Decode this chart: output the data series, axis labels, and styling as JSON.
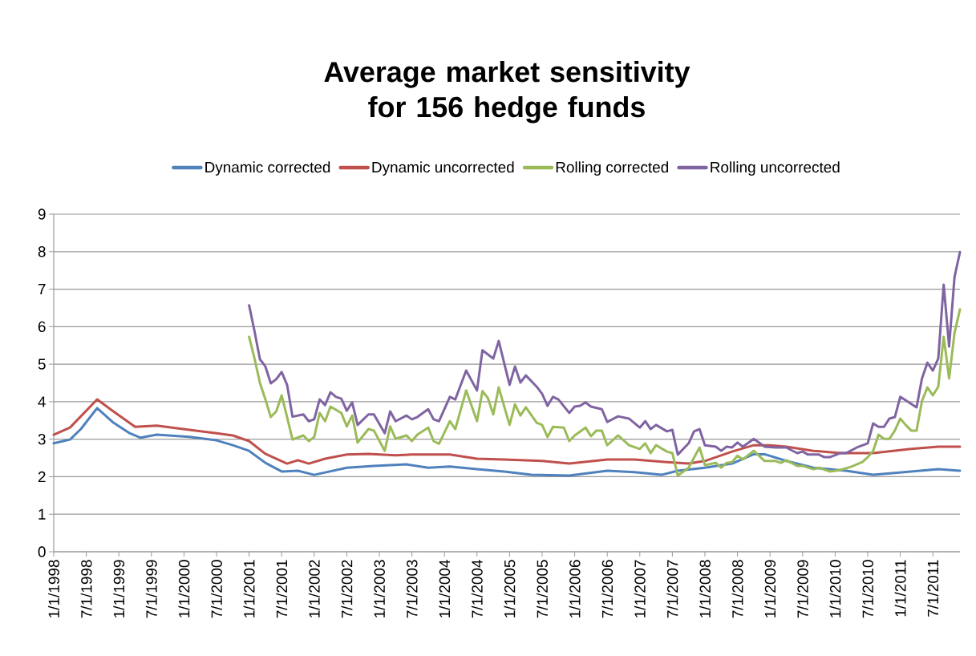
{
  "chart_data": {
    "type": "line",
    "title": "Average market sensitivity for 156 hedge funds",
    "series": [
      {
        "name": "Dynamic corrected",
        "color": "#4f81bd",
        "x": [
          "1998-01",
          "1998-04",
          "1998-06",
          "1998-09",
          "1998-12",
          "1999-03",
          "1999-05",
          "1999-08",
          "2000-02",
          "2000-07",
          "2000-10",
          "2001-01",
          "2001-04",
          "2001-07",
          "2001-10",
          "2002-01",
          "2002-07",
          "2002-12",
          "2003-06",
          "2003-10",
          "2004-02",
          "2004-07",
          "2004-12",
          "2005-05",
          "2005-12",
          "2006-07",
          "2006-12",
          "2007-05",
          "2007-08",
          "2008-01",
          "2008-06",
          "2008-10",
          "2008-12",
          "2009-04",
          "2009-09",
          "2010-03",
          "2010-08",
          "2010-12",
          "2011-08",
          "2011-12"
        ],
        "values": [
          2.89,
          2.99,
          3.27,
          3.83,
          3.44,
          3.16,
          3.04,
          3.12,
          3.06,
          2.97,
          2.84,
          2.69,
          2.37,
          2.14,
          2.16,
          2.05,
          2.24,
          2.29,
          2.33,
          2.24,
          2.27,
          2.2,
          2.14,
          2.05,
          2.03,
          2.16,
          2.12,
          2.05,
          2.16,
          2.24,
          2.35,
          2.6,
          2.6,
          2.42,
          2.24,
          2.16,
          2.05,
          2.1,
          2.2,
          2.16
        ]
      },
      {
        "name": "Dynamic uncorrected",
        "color": "#c0504d",
        "x": [
          "1998-01",
          "1998-04",
          "1998-09",
          "1998-12",
          "1999-04",
          "1999-08",
          "2000-02",
          "2000-07",
          "2000-10",
          "2001-01",
          "2001-04",
          "2001-08",
          "2001-10",
          "2001-12",
          "2002-03",
          "2002-07",
          "2002-11",
          "2003-04",
          "2003-07",
          "2004-02",
          "2004-07",
          "2004-12",
          "2005-07",
          "2005-12",
          "2006-07",
          "2006-12",
          "2007-06",
          "2007-10",
          "2008-01",
          "2008-06",
          "2008-10",
          "2009-01",
          "2009-04",
          "2009-09",
          "2010-02",
          "2010-08",
          "2011-03",
          "2011-08",
          "2011-12"
        ],
        "values": [
          3.12,
          3.31,
          4.06,
          3.74,
          3.33,
          3.36,
          3.25,
          3.16,
          3.1,
          2.95,
          2.61,
          2.35,
          2.44,
          2.35,
          2.48,
          2.59,
          2.61,
          2.57,
          2.59,
          2.59,
          2.48,
          2.46,
          2.42,
          2.35,
          2.46,
          2.46,
          2.39,
          2.35,
          2.42,
          2.67,
          2.84,
          2.84,
          2.8,
          2.69,
          2.63,
          2.63,
          2.74,
          2.8,
          2.8
        ]
      },
      {
        "name": "Rolling corrected",
        "color": "#9bbb59",
        "x": [
          "2001-01",
          "2001-02",
          "2001-03",
          "2001-04",
          "2001-05",
          "2001-06",
          "2001-07",
          "2001-08",
          "2001-09",
          "2001-11",
          "2001-12",
          "2002-01",
          "2002-02",
          "2002-03",
          "2002-04",
          "2002-06",
          "2002-07",
          "2002-08",
          "2002-09",
          "2002-11",
          "2002-12",
          "2003-02",
          "2003-03",
          "2003-04",
          "2003-06",
          "2003-07",
          "2003-08",
          "2003-10",
          "2003-11",
          "2003-12",
          "2004-02",
          "2004-03",
          "2004-05",
          "2004-07",
          "2004-08",
          "2004-09",
          "2004-10",
          "2004-11",
          "2005-01",
          "2005-02",
          "2005-03",
          "2005-04",
          "2005-06",
          "2005-07",
          "2005-08",
          "2005-09",
          "2005-11",
          "2005-12",
          "2006-01",
          "2006-03",
          "2006-04",
          "2006-05",
          "2006-06",
          "2006-07",
          "2006-09",
          "2006-11",
          "2007-01",
          "2007-02",
          "2007-03",
          "2007-04",
          "2007-06",
          "2007-07",
          "2007-08",
          "2007-10",
          "2007-12",
          "2008-01",
          "2008-03",
          "2008-04",
          "2008-05",
          "2008-06",
          "2008-07",
          "2008-08",
          "2008-10",
          "2008-12",
          "2009-02",
          "2009-03",
          "2009-04",
          "2009-06",
          "2009-07",
          "2009-09",
          "2009-10",
          "2009-12",
          "2010-02",
          "2010-04",
          "2010-06",
          "2010-07",
          "2010-08",
          "2010-09",
          "2010-10",
          "2010-11",
          "2010-12",
          "2011-01",
          "2011-02",
          "2011-03",
          "2011-04",
          "2011-05",
          "2011-06",
          "2011-07",
          "2011-08",
          "2011-09",
          "2011-10",
          "2011-11",
          "2011-12"
        ],
        "values": [
          5.73,
          5.15,
          4.5,
          4.06,
          3.59,
          3.74,
          4.17,
          3.59,
          2.99,
          3.1,
          2.95,
          3.06,
          3.7,
          3.48,
          3.87,
          3.7,
          3.34,
          3.63,
          2.91,
          3.27,
          3.23,
          2.69,
          3.34,
          3.01,
          3.1,
          2.95,
          3.12,
          3.31,
          2.95,
          2.88,
          3.48,
          3.27,
          4.3,
          3.48,
          4.28,
          4.1,
          3.66,
          4.38,
          3.38,
          3.93,
          3.63,
          3.85,
          3.44,
          3.38,
          3.06,
          3.33,
          3.31,
          2.95,
          3.1,
          3.31,
          3.08,
          3.23,
          3.23,
          2.84,
          3.1,
          2.84,
          2.74,
          2.89,
          2.63,
          2.84,
          2.67,
          2.63,
          2.03,
          2.24,
          2.78,
          2.31,
          2.37,
          2.24,
          2.37,
          2.39,
          2.56,
          2.46,
          2.69,
          2.42,
          2.42,
          2.37,
          2.44,
          2.29,
          2.29,
          2.2,
          2.24,
          2.14,
          2.18,
          2.27,
          2.39,
          2.52,
          2.69,
          3.12,
          3.01,
          3.01,
          3.23,
          3.55,
          3.38,
          3.23,
          3.23,
          4.02,
          4.38,
          4.17,
          4.4,
          5.73,
          4.62,
          5.84,
          6.46
        ]
      },
      {
        "name": "Rolling uncorrected",
        "color": "#8064a2",
        "x": [
          "2001-01",
          "2001-02",
          "2001-03",
          "2001-04",
          "2001-05",
          "2001-06",
          "2001-07",
          "2001-08",
          "2001-09",
          "2001-11",
          "2001-12",
          "2002-01",
          "2002-02",
          "2002-03",
          "2002-04",
          "2002-05",
          "2002-06",
          "2002-07",
          "2002-08",
          "2002-09",
          "2002-11",
          "2002-12",
          "2003-02",
          "2003-03",
          "2003-04",
          "2003-06",
          "2003-07",
          "2003-08",
          "2003-10",
          "2003-11",
          "2003-12",
          "2004-02",
          "2004-03",
          "2004-05",
          "2004-07",
          "2004-08",
          "2004-10",
          "2004-11",
          "2005-01",
          "2005-02",
          "2005-03",
          "2005-04",
          "2005-06",
          "2005-07",
          "2005-08",
          "2005-09",
          "2005-10",
          "2005-12",
          "2006-01",
          "2006-02",
          "2006-03",
          "2006-04",
          "2006-06",
          "2006-07",
          "2006-09",
          "2006-11",
          "2007-01",
          "2007-02",
          "2007-03",
          "2007-04",
          "2007-06",
          "2007-07",
          "2007-08",
          "2007-10",
          "2007-11",
          "2007-12",
          "2008-01",
          "2008-03",
          "2008-04",
          "2008-05",
          "2008-06",
          "2008-07",
          "2008-08",
          "2008-10",
          "2008-12",
          "2009-02",
          "2009-04",
          "2009-06",
          "2009-07",
          "2009-08",
          "2009-10",
          "2009-11",
          "2009-12",
          "2010-02",
          "2010-03",
          "2010-05",
          "2010-07",
          "2010-08",
          "2010-09",
          "2010-10",
          "2010-11",
          "2010-12",
          "2011-01",
          "2011-04",
          "2011-05",
          "2011-06",
          "2011-07",
          "2011-08",
          "2011-09",
          "2011-10",
          "2011-11",
          "2011-12"
        ],
        "values": [
          6.57,
          5.88,
          5.13,
          4.94,
          4.49,
          4.6,
          4.79,
          4.45,
          3.6,
          3.66,
          3.48,
          3.53,
          4.06,
          3.91,
          4.25,
          4.13,
          4.08,
          3.76,
          3.98,
          3.38,
          3.66,
          3.66,
          3.16,
          3.74,
          3.48,
          3.63,
          3.53,
          3.59,
          3.8,
          3.53,
          3.48,
          4.13,
          4.06,
          4.83,
          4.3,
          5.37,
          5.15,
          5.62,
          4.45,
          4.94,
          4.51,
          4.7,
          4.4,
          4.21,
          3.89,
          4.13,
          4.06,
          3.7,
          3.87,
          3.89,
          3.98,
          3.87,
          3.8,
          3.46,
          3.61,
          3.55,
          3.31,
          3.48,
          3.27,
          3.38,
          3.21,
          3.25,
          2.59,
          2.89,
          3.21,
          3.27,
          2.84,
          2.8,
          2.69,
          2.8,
          2.78,
          2.91,
          2.8,
          3.01,
          2.8,
          2.78,
          2.78,
          2.63,
          2.67,
          2.59,
          2.59,
          2.52,
          2.52,
          2.63,
          2.63,
          2.78,
          2.89,
          3.42,
          3.33,
          3.33,
          3.55,
          3.59,
          4.13,
          3.85,
          4.62,
          5.04,
          4.83,
          5.15,
          7.12,
          5.47,
          7.33,
          7.99
        ]
      }
    ],
    "xlim": [
      "1998-01",
      "2011-12"
    ],
    "xticks": [
      {
        "value": "1998-01",
        "label": "1/1/1998"
      },
      {
        "value": "1998-07",
        "label": "7/1/1998"
      },
      {
        "value": "1999-01",
        "label": "1/1/1999"
      },
      {
        "value": "1999-07",
        "label": "7/1/1999"
      },
      {
        "value": "2000-01",
        "label": "1/1/2000"
      },
      {
        "value": "2000-07",
        "label": "7/1/2000"
      },
      {
        "value": "2001-01",
        "label": "1/1/2001"
      },
      {
        "value": "2001-07",
        "label": "7/1/2001"
      },
      {
        "value": "2002-01",
        "label": "1/1/2002"
      },
      {
        "value": "2002-07",
        "label": "7/1/2002"
      },
      {
        "value": "2003-01",
        "label": "1/1/2003"
      },
      {
        "value": "2003-07",
        "label": "7/1/2003"
      },
      {
        "value": "2004-01",
        "label": "1/1/2004"
      },
      {
        "value": "2004-07",
        "label": "7/1/2004"
      },
      {
        "value": "2005-01",
        "label": "1/1/2005"
      },
      {
        "value": "2005-07",
        "label": "7/1/2005"
      },
      {
        "value": "2006-01",
        "label": "1/1/2006"
      },
      {
        "value": "2006-07",
        "label": "7/1/2006"
      },
      {
        "value": "2007-01",
        "label": "1/1/2007"
      },
      {
        "value": "2007-07",
        "label": "7/1/2007"
      },
      {
        "value": "2008-01",
        "label": "1/1/2008"
      },
      {
        "value": "2008-07",
        "label": "7/1/2008"
      },
      {
        "value": "2009-01",
        "label": "1/1/2009"
      },
      {
        "value": "2009-07",
        "label": "7/1/2009"
      },
      {
        "value": "2010-01",
        "label": "1/1/2010"
      },
      {
        "value": "2010-07",
        "label": "7/1/2010"
      },
      {
        "value": "2011-01",
        "label": "1/1/2011"
      },
      {
        "value": "2011-07",
        "label": "7/1/2011"
      }
    ],
    "ylim": [
      0,
      9
    ],
    "yticks": [
      0,
      1,
      2,
      3,
      4,
      5,
      6,
      7,
      8,
      9
    ],
    "grid": "y",
    "legend": "top"
  }
}
